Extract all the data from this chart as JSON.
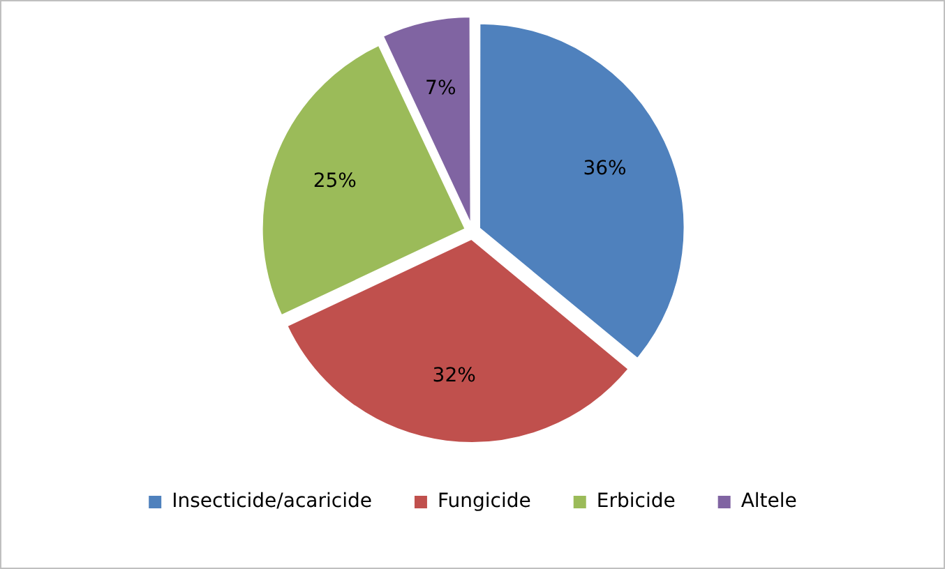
{
  "chart_data": {
    "type": "pie",
    "categories": [
      "Insecticide/acaricide",
      "Fungicide",
      "Erbicide",
      "Altele"
    ],
    "values": [
      36,
      32,
      25,
      7
    ],
    "colors": [
      "#4f81bd",
      "#c0504d",
      "#9bbb59",
      "#8064a2"
    ],
    "value_labels": [
      "36%",
      "32%",
      "25%",
      "7%"
    ],
    "legend": "bottom"
  }
}
